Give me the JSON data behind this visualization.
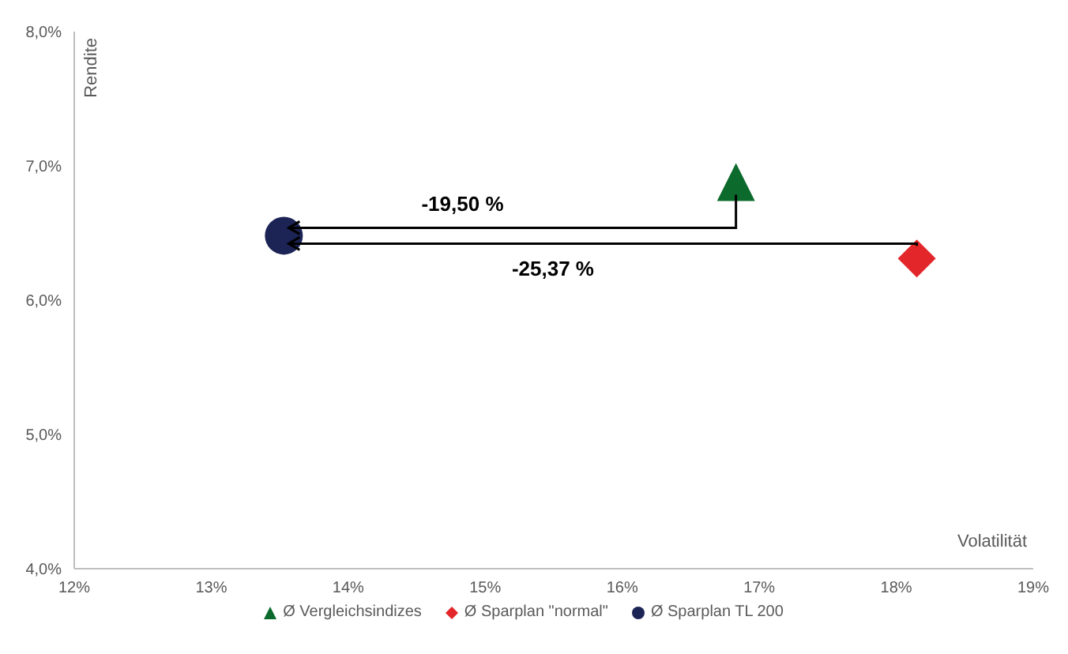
{
  "chart_data": {
    "type": "scatter",
    "xlabel": "Volatilität",
    "ylabel": "Rendite",
    "series": [
      {
        "name": "Ø Vergleichsindizes",
        "color": "#0b6a2c",
        "marker": "triangle",
        "x": [
          16.83
        ],
        "values": [
          6.88
        ]
      },
      {
        "name": "Ø Sparplan \"normal\"",
        "color": "#e3262a",
        "marker": "diamond",
        "x": [
          18.15
        ],
        "values": [
          6.31
        ]
      },
      {
        "name": "Ø Sparplan TL 200",
        "color": "#1c2456",
        "marker": "circle",
        "x": [
          13.53
        ],
        "values": [
          6.48
        ]
      }
    ],
    "xlim": [
      12,
      19
    ],
    "xticks": [
      {
        "value": 12,
        "label": "12%"
      },
      {
        "value": 13,
        "label": "13%"
      },
      {
        "value": 14,
        "label": "14%"
      },
      {
        "value": 15,
        "label": "15%"
      },
      {
        "value": 16,
        "label": "16%"
      },
      {
        "value": 17,
        "label": "17%"
      },
      {
        "value": 18,
        "label": "18%"
      },
      {
        "value": 19,
        "label": "19%"
      }
    ],
    "ylim": [
      4,
      8
    ],
    "yticks": [
      {
        "value": 4,
        "label": "4,0%"
      },
      {
        "value": 5,
        "label": "5,0%"
      },
      {
        "value": 6,
        "label": "6,0%"
      },
      {
        "value": 7,
        "label": "7,0%"
      },
      {
        "value": 8,
        "label": "8,0%"
      }
    ],
    "annotations": [
      "-19,50 %",
      "-25,37 %"
    ],
    "grid": false,
    "legend": "bottom"
  }
}
